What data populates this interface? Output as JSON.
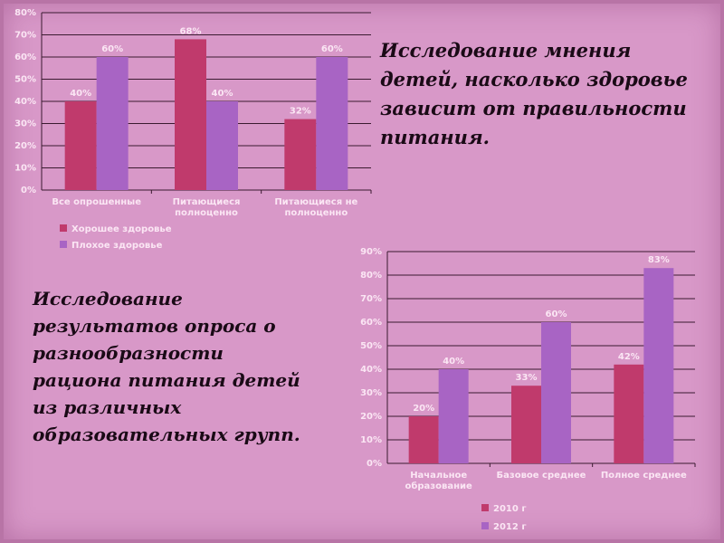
{
  "slide": {
    "title_top": "Исследование мнения\nдетей, насколько здоровье\nзависит от правильности\nпитания.",
    "title_bottom": "Исследование\nрезультатов опроса о\nразнообразности\nрациона питания детей\nиз различных\nобразовательных групп."
  },
  "chart_data": [
    {
      "type": "bar",
      "categories": [
        "Все опрошенные",
        "Питающиеся полноценно",
        "Питающиеся не полноценно"
      ],
      "series": [
        {
          "name": "Хорошее здоровье",
          "values": [
            40,
            68,
            32
          ],
          "color": "#c03a6c"
        },
        {
          "name": "Плохое здоровье",
          "values": [
            60,
            40,
            60
          ],
          "color": "#a864c4"
        }
      ],
      "data_labels": true,
      "ylim": [
        0,
        80
      ],
      "yticks": [
        "0%",
        "10%",
        "20%",
        "30%",
        "40%",
        "50%",
        "60%",
        "70%",
        "80%"
      ],
      "legend": "bottom"
    },
    {
      "type": "bar",
      "categories": [
        "Начальное образование",
        "Базовое среднее",
        "Полное среднее"
      ],
      "series": [
        {
          "name": "2010 г",
          "values": [
            20,
            33,
            42
          ],
          "color": "#c03a6c"
        },
        {
          "name": "2012 г",
          "values": [
            40,
            60,
            83
          ],
          "color": "#a864c4"
        }
      ],
      "data_labels": true,
      "ylim": [
        0,
        90
      ],
      "yticks": [
        "0%",
        "10%",
        "20%",
        "30%",
        "40%",
        "50%",
        "60%",
        "70%",
        "80%",
        "90%"
      ],
      "legend": "bottom"
    }
  ]
}
